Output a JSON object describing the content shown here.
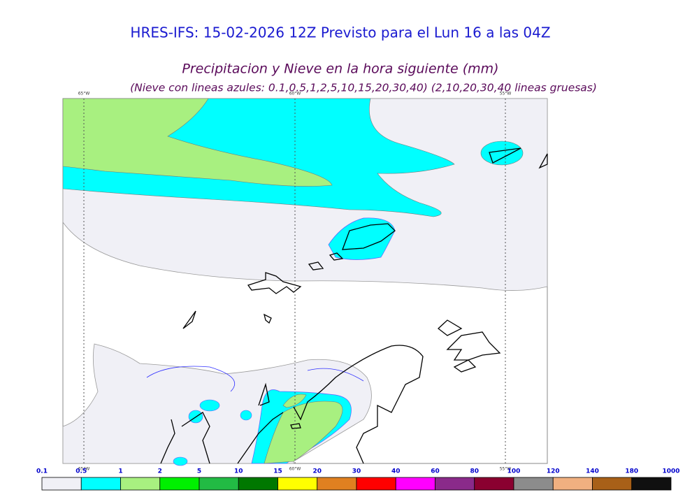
{
  "header": {
    "title": "HRES-IFS: 15-02-2026 12Z Previsto para el Lun 16 a las 04Z",
    "subtitle": "Precipitacion y Nieve en la hora siguiente (mm)",
    "note": "(Nieve con lineas azules: 0.1,0.5,1,2,5,10,15,20,30,40)  (2,10,20,30,40 lineas gruesas)"
  },
  "map": {
    "meridians": [
      "65°W",
      "60°W",
      "55°W"
    ]
  },
  "colorbar": {
    "ticks": [
      0.1,
      0.5,
      1,
      2,
      5,
      10,
      15,
      20,
      30,
      40,
      60,
      80,
      100,
      120,
      140,
      180,
      1000
    ],
    "colors": [
      "#f0f0f6",
      "#00ffff",
      "#a8f080",
      "#00f000",
      "#22bb44",
      "#007800",
      "#ffff00",
      "#e08020",
      "#ff0000",
      "#ff00ff",
      "#8a2a8a",
      "#8a0030",
      "#8c8c8c",
      "#f0b080",
      "#a86018",
      "#101010"
    ]
  }
}
